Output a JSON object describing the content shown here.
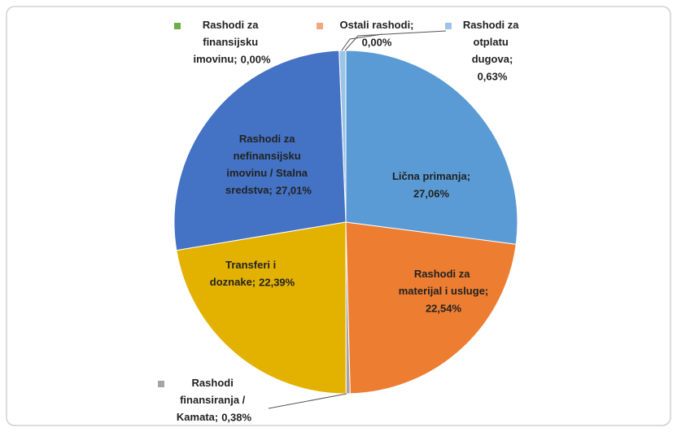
{
  "chart_data": {
    "type": "pie",
    "categories": [
      "Lična primanja;",
      "Rashodi za materijal i usluge;",
      "Rashodi finansiranja / Kamata;",
      "Transferi i doznake;",
      "Rashodi za nefinansijsku imovinu / Stalna sredstva;",
      "Rashodi za finansijsku imovinu;",
      "Ostali rashodi;",
      "Rashodi za otplatu dugova;"
    ],
    "values": [
      27.06,
      22.54,
      0.38,
      22.39,
      27.01,
      0.0,
      0.0,
      0.63
    ],
    "value_labels": [
      "27,06%",
      "22,54%",
      "0,38%",
      "22,39%",
      "27,01%",
      "0,00%",
      "0,00%",
      "0,63%"
    ],
    "colors": [
      "#5b9bd5",
      "#ed7d31",
      "#a5a5a5",
      "#e3b100",
      "#4472c4",
      "#70ad47",
      "#f4a582",
      "#9dc3e6"
    ]
  }
}
